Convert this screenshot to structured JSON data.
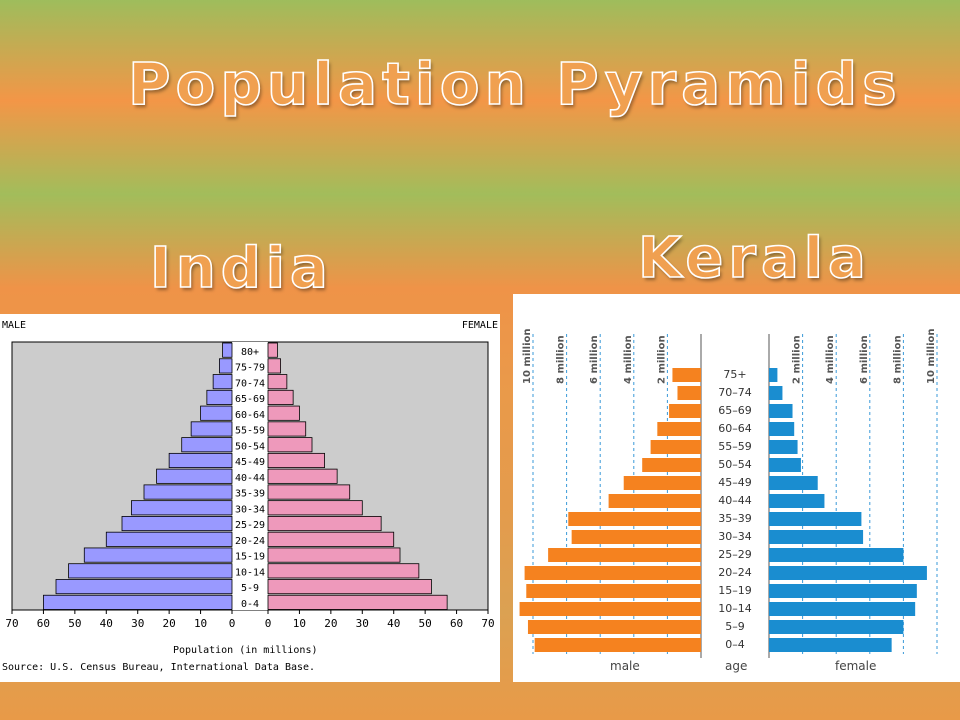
{
  "slide": {
    "title": "Population Pyramids",
    "india_heading": "India",
    "kerala_heading": "Kerala"
  },
  "india": {
    "male_label": "MALE",
    "female_label": "FEMALE",
    "xlabel": "Population (in millions)",
    "source": "Source: U.S. Census Bureau, International Data Base."
  },
  "kerala": {
    "male_label": "male",
    "age_label": "age",
    "female_label": "female"
  },
  "chart_data": [
    {
      "type": "bar",
      "orientation": "horizontal",
      "title": "India",
      "xlabel": "Population (in millions)",
      "xlim": [
        0,
        70
      ],
      "xticks": [
        70,
        60,
        50,
        40,
        30,
        20,
        10,
        0
      ],
      "categories": [
        "0-4",
        "5-9",
        "10-14",
        "15-19",
        "20-24",
        "25-29",
        "30-34",
        "35-39",
        "40-44",
        "45-49",
        "50-54",
        "55-59",
        "60-64",
        "65-69",
        "70-74",
        "75-79",
        "80+"
      ],
      "series": [
        {
          "name": "MALE",
          "color": "#9999ff",
          "values": [
            60,
            56,
            52,
            47,
            40,
            35,
            32,
            28,
            24,
            20,
            16,
            13,
            10,
            8,
            6,
            4,
            3
          ]
        },
        {
          "name": "FEMALE",
          "color": "#ee99bb",
          "values": [
            57,
            52,
            48,
            42,
            40,
            36,
            30,
            26,
            22,
            18,
            14,
            12,
            10,
            8,
            6,
            4,
            3
          ]
        }
      ],
      "grid": false,
      "background": "#cccccc"
    },
    {
      "type": "bar",
      "orientation": "horizontal",
      "title": "Kerala",
      "xticks": [
        "10 million",
        "8 million",
        "6 million",
        "4 million",
        "2 million"
      ],
      "xticks_female": [
        "2 million",
        "4 million",
        "6 million",
        "8 million",
        "10 million"
      ],
      "xlim": [
        0,
        11
      ],
      "categories": [
        "0–4",
        "5–9",
        "10–14",
        "15–19",
        "20–24",
        "25–29",
        "30–34",
        "35–39",
        "40–44",
        "45–49",
        "50–54",
        "55–59",
        "60–64",
        "65–69",
        "70–74",
        "75+"
      ],
      "series": [
        {
          "name": "male",
          "color": "#f5821f",
          "values": [
            9.9,
            10.3,
            10.8,
            10.4,
            10.5,
            9.1,
            7.7,
            7.9,
            5.5,
            4.6,
            3.5,
            3.0,
            2.6,
            1.9,
            1.4,
            1.7
          ]
        },
        {
          "name": "female",
          "color": "#1a8dd0",
          "values": [
            7.3,
            8.0,
            8.7,
            8.8,
            9.4,
            8.0,
            5.6,
            5.5,
            3.3,
            2.9,
            1.9,
            1.7,
            1.5,
            1.4,
            0.8,
            0.5
          ]
        }
      ],
      "grid": true
    }
  ]
}
